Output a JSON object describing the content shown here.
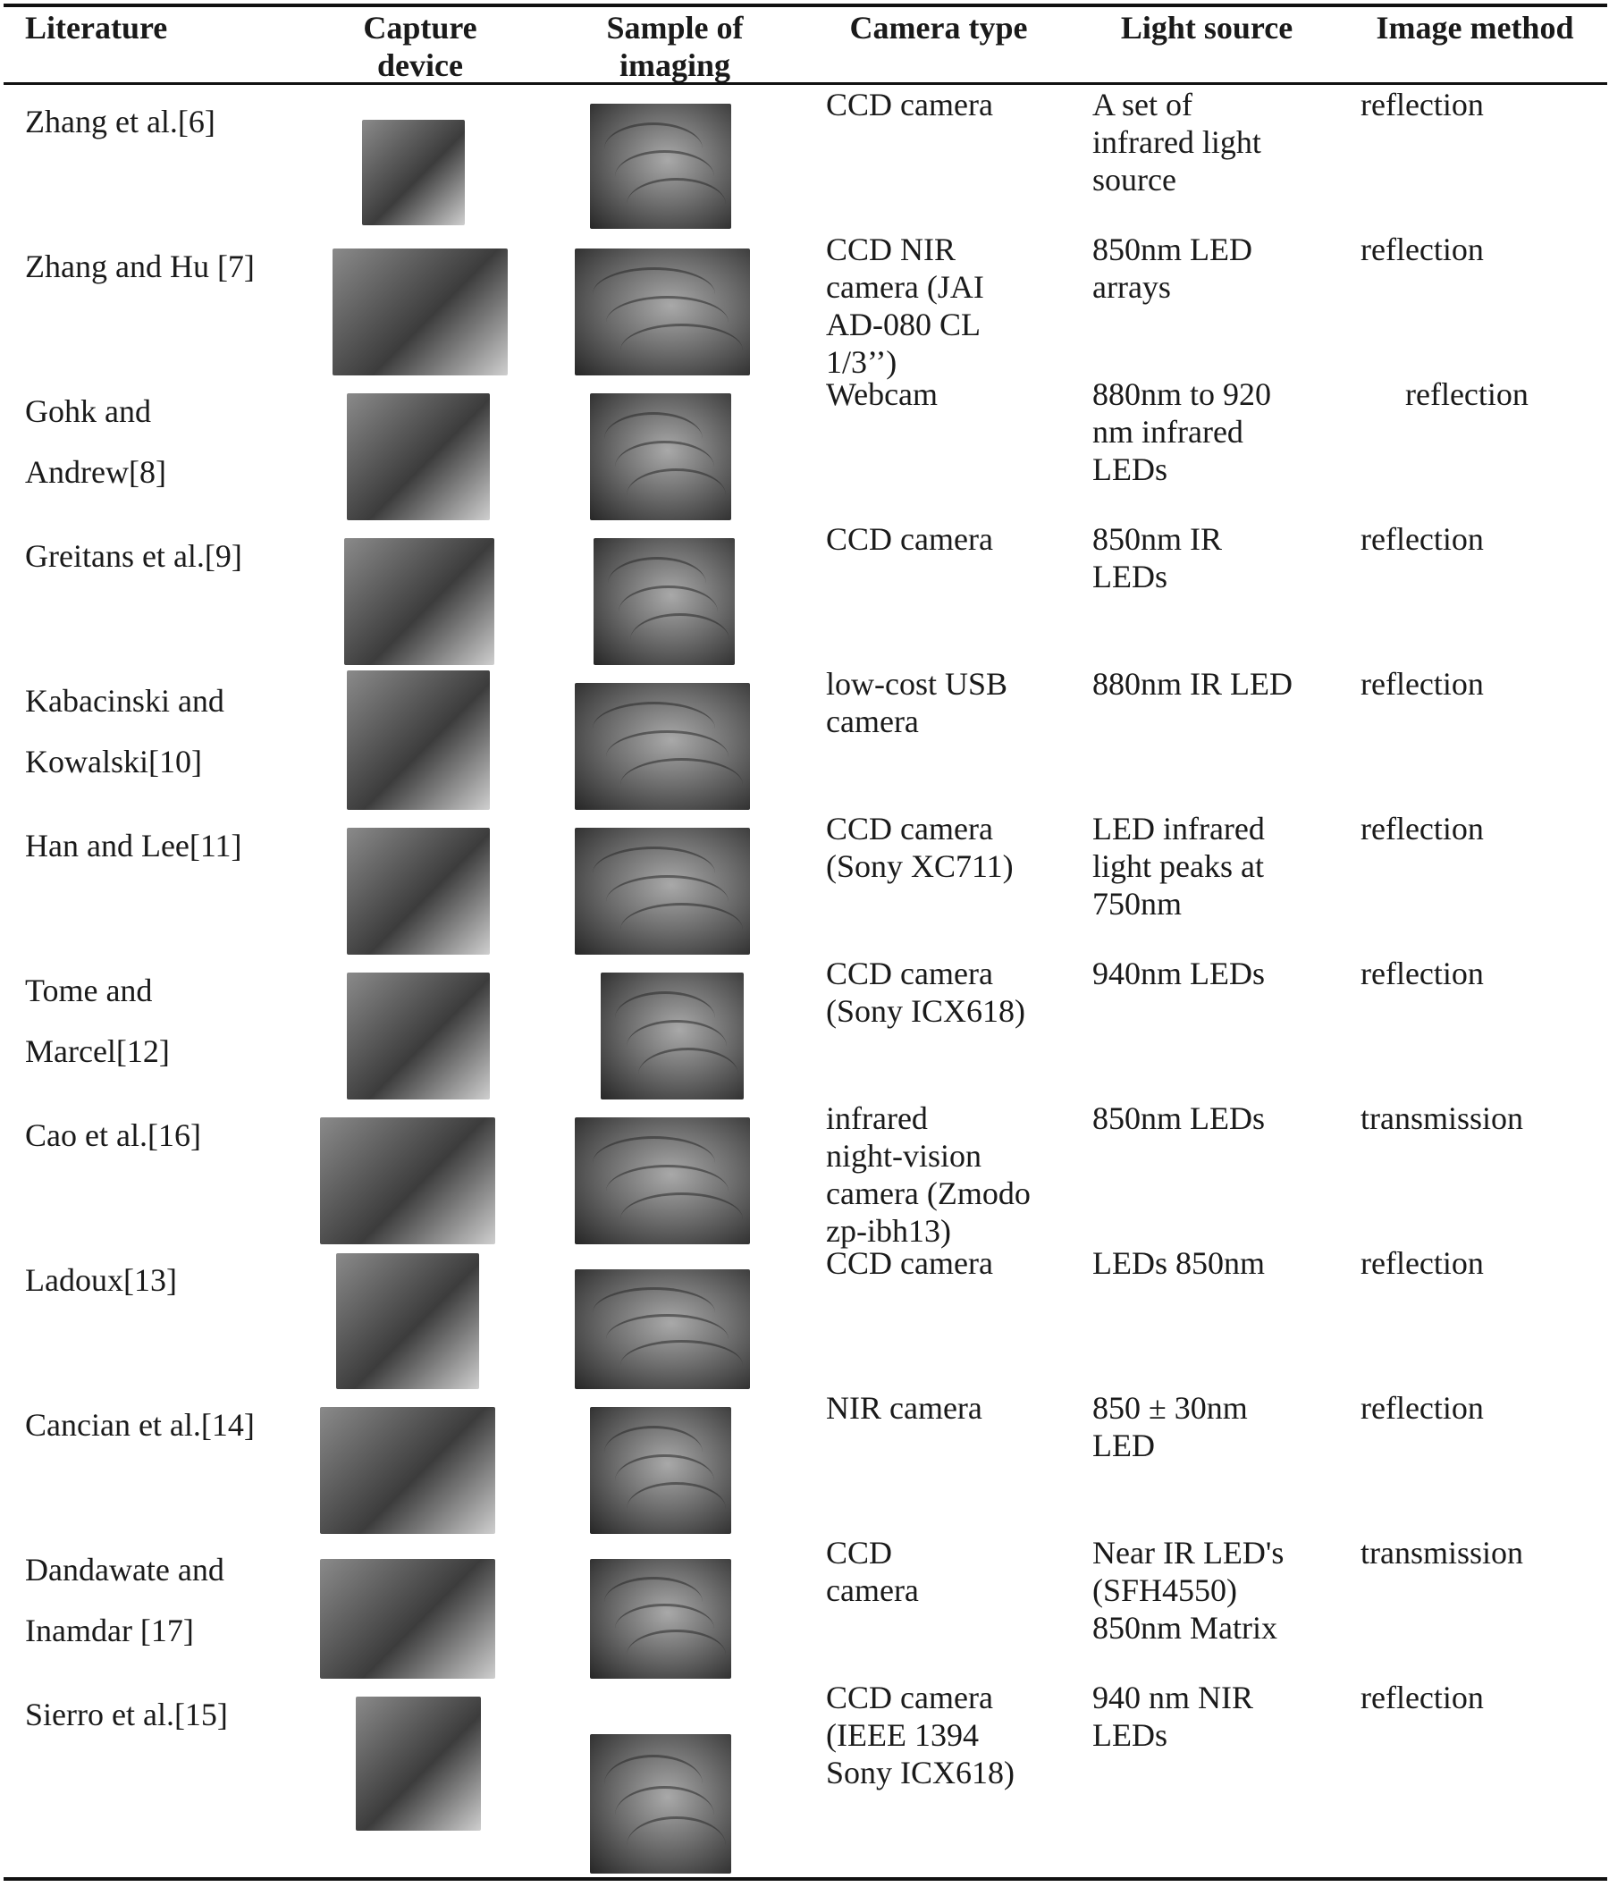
{
  "headers": {
    "literature": "Literature",
    "capture_device": "Capture\ndevice",
    "sample": "Sample of\nimaging",
    "camera_type": "Camera type",
    "light_source": "Light source",
    "image_method": "Image method"
  },
  "rows": [
    {
      "literature": "Zhang et al.[6]",
      "camera": "CCD camera",
      "light": "A set of\ninfrared light\nsource",
      "method": "reflection"
    },
    {
      "literature": "Zhang and Hu [7]",
      "camera": "CCD NIR\ncamera (JAI\nAD-080 CL\n1/3’’)",
      "light": "850nm LED\narrays",
      "method": "reflection"
    },
    {
      "literature": "Gohk and\nAndrew[8]",
      "camera": "Webcam",
      "light": "880nm to 920\nnm infrared\nLEDs",
      "method": "reflection"
    },
    {
      "literature": "Greitans et al.[9]",
      "camera": "CCD camera",
      "light": "850nm    IR\nLEDs",
      "method": "reflection"
    },
    {
      "literature": "Kabacinski and\nKowalski[10]",
      "camera": "low-cost USB\ncamera",
      "light": "880nm IR LED",
      "method": "reflection"
    },
    {
      "literature": "Han and Lee[11]",
      "camera": "CCD camera\n(Sony XC711)",
      "light": "LED infrared\nlight peaks at\n750nm",
      "method": "reflection"
    },
    {
      "literature": "Tome and\nMarcel[12]",
      "camera": "CCD camera\n(Sony ICX618)",
      "light": "940nm LEDs",
      "method": "reflection"
    },
    {
      "literature": "Cao et al.[16]",
      "camera": "infrared\nnight-vision\ncamera (Zmodo\nzp-ibh13)",
      "light": "850nm LEDs",
      "method": "transmission"
    },
    {
      "literature": "Ladoux[13]",
      "camera": "CCD camera",
      "light": "LEDs    850nm",
      "method": "reflection"
    },
    {
      "literature": "Cancian et al.[14]",
      "camera": "NIR camera",
      "light": "850 ± 30nm\nLED",
      "method": "reflection"
    },
    {
      "literature": "Dandawate    and\nInamdar [17]",
      "camera": "CCD\ncamera",
      "light": "Near IR LED's\n(SFH4550)\n850nm Matrix",
      "method": "transmission"
    },
    {
      "literature": "Sierro et al.[15]",
      "camera": "CCD camera\n(IEEE 1394\nSony ICX618)",
      "light": "940 nm NIR\nLEDs",
      "method": "reflection"
    }
  ]
}
